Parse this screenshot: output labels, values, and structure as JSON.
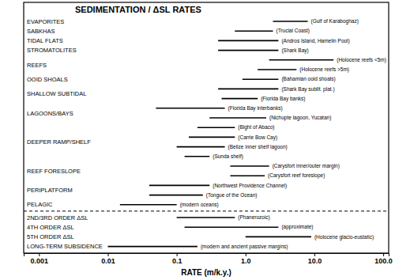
{
  "chart_data": {
    "type": "range",
    "title": "SEDIMENTATION / ΔSL RATES",
    "x_label": "RATE (m/k.y.)",
    "orientation": "horizontal",
    "log": "x",
    "grid": false,
    "color": "#000000",
    "xlim": [
      0.0006,
      120
    ],
    "xticks": [
      0.001,
      0.01,
      0.1,
      {
        "value": 1,
        "label": "1.0"
      },
      {
        "value": 10,
        "label": "10.0"
      },
      {
        "value": 100,
        "label": "100.0"
      }
    ],
    "series": [
      {
        "name": "EVAPORITES",
        "categories": [
          "(Gulf of Karaboghaz)"
        ],
        "low": [
          2.5
        ],
        "high": [
          8
        ]
      },
      {
        "name": "SABKHAS",
        "categories": [
          "(Trucial Coast)"
        ],
        "low": [
          0.7
        ],
        "high": [
          2.5
        ]
      },
      {
        "name": "TIDAL FLATS",
        "categories": [
          "(Andros Island, Hamelin Pool)"
        ],
        "low": [
          0.4
        ],
        "high": [
          3
        ]
      },
      {
        "name": "STROMATOLITES",
        "categories": [
          "(Shark Bay)"
        ],
        "low": [
          0.4
        ],
        "high": [
          3
        ]
      },
      {
        "name": "REEFS",
        "categories": [
          "(Holocene reefs <5m)",
          "(Holocene reefs >5m)"
        ],
        "low": [
          2.2,
          1.5
        ],
        "high": [
          19,
          5.5
        ]
      },
      {
        "name": "OOID SHOALS",
        "categories": [
          "(Bahamian ooid shoals)"
        ],
        "low": [
          0.9
        ],
        "high": [
          3
        ]
      },
      {
        "name": "SHALLOW SUBTIDAL",
        "categories": [
          "(Shark Bay sublit. plat.)",
          "(Florida Bay banks)"
        ],
        "low": [
          0.4,
          0.45
        ],
        "high": [
          3,
          1.5
        ]
      },
      {
        "name": "LAGOONS/BAYS",
        "categories": [
          "(Florida Bay interbanks)",
          "(Nichupte lagoon, Yucatan)"
        ],
        "low": [
          0.05,
          0.3
        ],
        "high": [
          0.5,
          2
        ]
      },
      {
        "name": "DEEPER RAMP/SHELF",
        "categories": [
          "(Bight of Abaco)",
          "(Carrie Bow Cay)",
          "(Belize inner shelf lagoon)",
          "(Sunda shelf)"
        ],
        "low": [
          0.2,
          0.15,
          0.1,
          0.13
        ],
        "high": [
          0.7,
          0.7,
          0.5,
          0.3
        ]
      },
      {
        "name": "REEF FORESLOPE",
        "categories": [
          "(Carysfort inner/outer margin)",
          "(Carysfort reef foreslope)"
        ],
        "low": [
          0.6,
          0.6
        ],
        "high": [
          2.2,
          1.9
        ]
      },
      {
        "name": "PERIPLATFORM",
        "categories": [
          "(Northwest Providence Channel)",
          "(Tongue of the Ocean)"
        ],
        "low": [
          0.04,
          0.04
        ],
        "high": [
          0.3,
          0.24
        ]
      },
      {
        "name": "PELAGIC",
        "categories": [
          "(modern oceans)"
        ],
        "low": [
          0.015
        ],
        "high": [
          0.1
        ]
      },
      {
        "name": "2ND/3RD ORDER ΔSL",
        "categories": [
          "(Phanerozoic)"
        ],
        "low": [
          0.1
        ],
        "high": [
          0.7
        ]
      },
      {
        "name": "4TH ORDER ΔSL",
        "categories": [
          "(approximate)"
        ],
        "low": [
          0.13
        ],
        "high": [
          3
        ]
      },
      {
        "name": "5TH ORDER ΔSL",
        "categories": [
          "(Holocene glacio-eustatic)"
        ],
        "low": [
          1
        ],
        "high": [
          9
        ]
      },
      {
        "name": "LONG-TERM SUBSIDENCE",
        "categories": [
          "(modern and ancient passive margins)"
        ],
        "low": [
          0.01
        ],
        "high": [
          0.2
        ]
      }
    ]
  }
}
